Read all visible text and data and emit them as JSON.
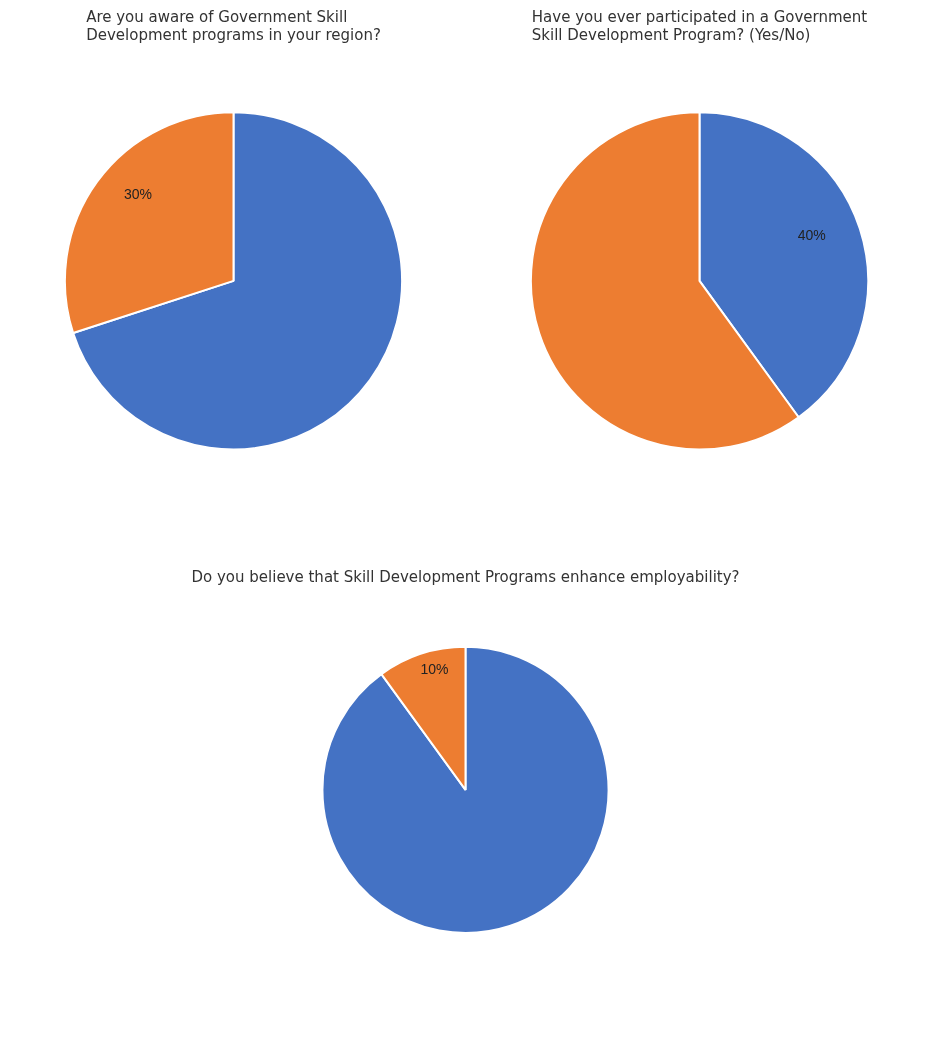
{
  "chart_data": [
    {
      "type": "pie",
      "title": "Are you aware of Government Skill Development programs in your region?",
      "categories": [
        null,
        null
      ],
      "values": [
        70,
        30
      ],
      "colors": [
        "#4472c4",
        "#ed7d31"
      ],
      "value_labels": [
        null,
        "30%"
      ]
    },
    {
      "type": "pie",
      "title": "Have you ever participated in a Government Skill Development Program? (Yes/No)",
      "categories": [
        null,
        null
      ],
      "values": [
        40,
        60
      ],
      "colors": [
        "#4472c4",
        "#ed7d31"
      ],
      "value_labels": [
        "40%",
        null
      ]
    },
    {
      "type": "pie",
      "title": "Do you believe that Skill Development Programs enhance employability?",
      "categories": [
        null,
        null
      ],
      "values": [
        90,
        10
      ],
      "colors": [
        "#4472c4",
        "#ed7d31"
      ],
      "value_labels": [
        null,
        "10%"
      ]
    }
  ]
}
